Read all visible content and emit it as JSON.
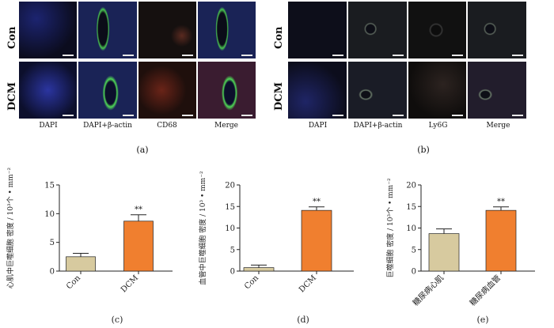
{
  "panel_a": {
    "tag": "(a)",
    "rows": [
      "Con",
      "DCM"
    ],
    "cols": [
      "DAPI",
      "DAPI+β-actin",
      "CD68",
      "Merge"
    ]
  },
  "panel_b": {
    "tag": "(b)",
    "rows": [
      "Con",
      "DCM"
    ],
    "cols": [
      "DAPI",
      "DAPI+β-actin",
      "Ly6G",
      "Merge"
    ]
  },
  "colors": {
    "con_bar": "#d7ca9f",
    "dcm_bar": "#f07f2f",
    "dapi": "#3d45b8",
    "actin": "#3fcf4a",
    "marker": "#e0462c"
  },
  "chart_data": [
    {
      "tag": "(c)",
      "type": "bar",
      "ylabel": "心肌中巨噬细胞 密度 / 10³个 • mm⁻²",
      "ylim": [
        0,
        15
      ],
      "yticks": [
        0,
        5,
        10,
        15
      ],
      "categories": [
        "Con",
        "DCM"
      ],
      "values": [
        2.5,
        8.7
      ],
      "errors": [
        0.6,
        1.1
      ],
      "significance": [
        "",
        "**"
      ]
    },
    {
      "tag": "(d)",
      "type": "bar",
      "ylabel": "血管中巨噬细胞 密度 / 10³ • mm⁻²",
      "ylim": [
        0,
        20
      ],
      "yticks": [
        0,
        5,
        10,
        15,
        20
      ],
      "categories": [
        "Con",
        "DCM"
      ],
      "values": [
        0.8,
        14.1
      ],
      "errors": [
        0.6,
        0.8
      ],
      "significance": [
        "",
        "**"
      ]
    },
    {
      "tag": "(e)",
      "type": "bar",
      "ylabel": "巨噬细胞 密度 / 10³个 • mm⁻²",
      "ylim": [
        0,
        20
      ],
      "yticks": [
        0,
        5,
        10,
        15,
        20
      ],
      "categories": [
        "糖尿病心肌",
        "糖尿病血管"
      ],
      "values": [
        8.7,
        14.1
      ],
      "errors": [
        1.1,
        0.8
      ],
      "significance": [
        "",
        "**"
      ]
    }
  ]
}
